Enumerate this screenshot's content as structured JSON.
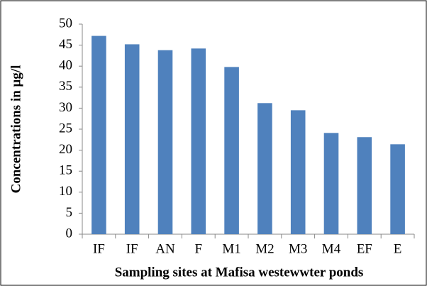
{
  "chart_data": {
    "type": "bar",
    "x_label": "Sampling sites at Mafisa westewwter  ponds",
    "y_label": "Concentrations in μg/l",
    "categories": [
      "IF",
      "IF",
      "AN",
      "F",
      "M1",
      "M2",
      "M3",
      "M4",
      "EF",
      "E"
    ],
    "values": [
      47.2,
      45.2,
      43.8,
      44.2,
      39.8,
      31.2,
      29.5,
      24.1,
      23.1,
      21.4
    ],
    "color": "#4f81bd",
    "ylim": [
      0,
      50
    ],
    "yticks": [
      0,
      5,
      10,
      15,
      20,
      25,
      30,
      35,
      40,
      45,
      50
    ],
    "grid": false
  }
}
